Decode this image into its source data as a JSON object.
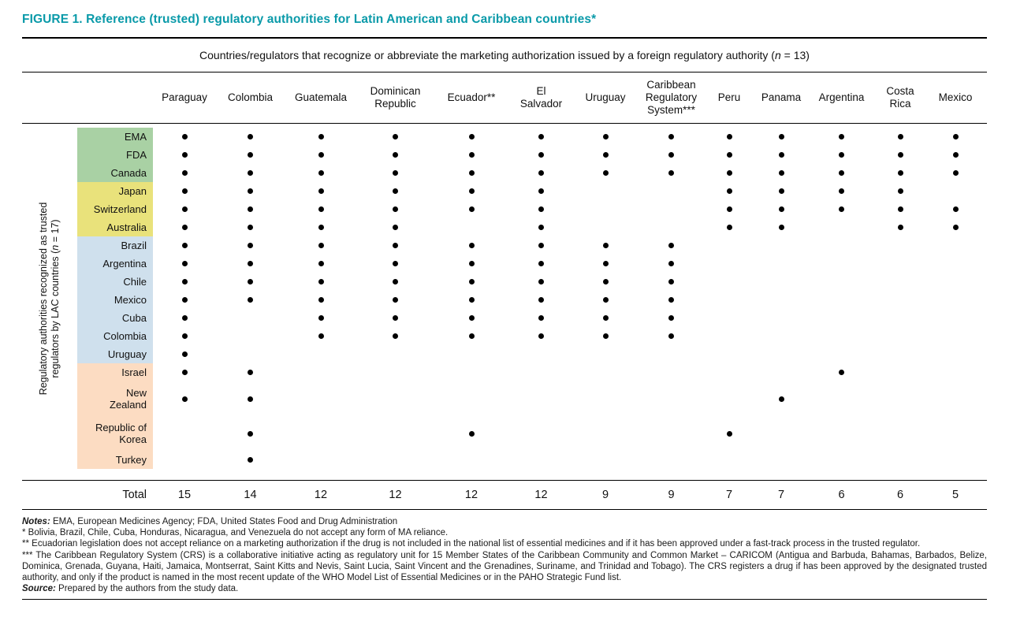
{
  "title": "FIGURE 1. Reference (trusted) regulatory authorities for Latin American and Caribbean countries*",
  "colors": {
    "title": "#0a9aa9",
    "green": "#a9d1a4",
    "yellow": "#e9e27b",
    "blue": "#cfe0ed",
    "peach": "#fcdcc2",
    "dot": "#000000"
  },
  "col_group_header": {
    "before": "Countries/regulators that recognize or abbreviate the marketing authorization issued by a foreign regulatory authority (",
    "n": "n",
    "after": " = 13)"
  },
  "side_label": {
    "line1": "Regulatory authorities recognized as trusted",
    "line2_before": "regulators by LAC countries (",
    "n": "n",
    "line2_after": " = 17)"
  },
  "chart_data": {
    "type": "heatmap",
    "title": "Reference (trusted) regulatory authorities for Latin American and Caribbean countries",
    "columns": [
      "Paraguay",
      "Colombia",
      "Guatemala",
      "Dominican\nRepublic",
      "Ecuador**",
      "El\nSalvador",
      "Uruguay",
      "Caribbean\nRegulatory\nSystem***",
      "Peru",
      "Panama",
      "Argentina",
      "Costa\nRica",
      "Mexico"
    ],
    "rows": [
      {
        "label": "EMA",
        "group": "green",
        "dots": [
          1,
          1,
          1,
          1,
          1,
          1,
          1,
          1,
          1,
          1,
          1,
          1,
          1
        ]
      },
      {
        "label": "FDA",
        "group": "green",
        "dots": [
          1,
          1,
          1,
          1,
          1,
          1,
          1,
          1,
          1,
          1,
          1,
          1,
          1
        ]
      },
      {
        "label": "Canada",
        "group": "green",
        "dots": [
          1,
          1,
          1,
          1,
          1,
          1,
          1,
          1,
          1,
          1,
          1,
          1,
          1
        ]
      },
      {
        "label": "Japan",
        "group": "yellow",
        "dots": [
          1,
          1,
          1,
          1,
          1,
          1,
          0,
          0,
          1,
          1,
          1,
          1,
          0
        ]
      },
      {
        "label": "Switzerland",
        "group": "yellow",
        "dots": [
          1,
          1,
          1,
          1,
          1,
          1,
          0,
          0,
          1,
          1,
          1,
          1,
          1
        ]
      },
      {
        "label": "Australia",
        "group": "yellow",
        "dots": [
          1,
          1,
          1,
          1,
          0,
          1,
          0,
          0,
          1,
          1,
          0,
          1,
          1
        ]
      },
      {
        "label": "Brazil",
        "group": "blue",
        "dots": [
          1,
          1,
          1,
          1,
          1,
          1,
          1,
          1,
          0,
          0,
          0,
          0,
          0
        ]
      },
      {
        "label": "Argentina",
        "group": "blue",
        "dots": [
          1,
          1,
          1,
          1,
          1,
          1,
          1,
          1,
          0,
          0,
          0,
          0,
          0
        ]
      },
      {
        "label": "Chile",
        "group": "blue",
        "dots": [
          1,
          1,
          1,
          1,
          1,
          1,
          1,
          1,
          0,
          0,
          0,
          0,
          0
        ]
      },
      {
        "label": "Mexico",
        "group": "blue",
        "dots": [
          1,
          1,
          1,
          1,
          1,
          1,
          1,
          1,
          0,
          0,
          0,
          0,
          0
        ]
      },
      {
        "label": "Cuba",
        "group": "blue",
        "dots": [
          1,
          0,
          1,
          1,
          1,
          1,
          1,
          1,
          0,
          0,
          0,
          0,
          0
        ]
      },
      {
        "label": "Colombia",
        "group": "blue",
        "dots": [
          1,
          0,
          1,
          1,
          1,
          1,
          1,
          1,
          0,
          0,
          0,
          0,
          0
        ]
      },
      {
        "label": "Uruguay",
        "group": "blue",
        "dots": [
          1,
          0,
          0,
          0,
          0,
          0,
          0,
          0,
          0,
          0,
          0,
          0,
          0
        ]
      },
      {
        "label": "Israel",
        "group": "peach",
        "dots": [
          1,
          1,
          0,
          0,
          0,
          0,
          0,
          0,
          0,
          0,
          1,
          0,
          0
        ]
      },
      {
        "label": "New\nZealand",
        "group": "peach",
        "dots": [
          1,
          1,
          0,
          0,
          0,
          0,
          0,
          0,
          0,
          1,
          0,
          0,
          0
        ]
      },
      {
        "label": "Republic of\nKorea",
        "group": "peach",
        "dots": [
          0,
          1,
          0,
          0,
          1,
          0,
          0,
          0,
          1,
          0,
          0,
          0,
          0
        ]
      },
      {
        "label": "Turkey",
        "group": "peach",
        "dots": [
          0,
          1,
          0,
          0,
          0,
          0,
          0,
          0,
          0,
          0,
          0,
          0,
          0
        ]
      }
    ],
    "total_label": "Total",
    "column_totals": [
      15,
      14,
      12,
      12,
      12,
      12,
      9,
      9,
      7,
      7,
      6,
      6,
      5
    ]
  },
  "notes": [
    {
      "lead": "Notes:",
      "text": " EMA, European Medicines Agency; FDA, United States Food and Drug Administration"
    },
    {
      "lead": "",
      "text": "* Bolivia, Brazil, Chile, Cuba, Honduras, Nicaragua, and Venezuela do not accept any form of MA reliance."
    },
    {
      "lead": "",
      "text": "** Ecuadorian legislation does not accept reliance on a marketing authorization if the drug is not included in the national list of essential medicines and if it has been approved under a fast-track process in the trusted regulator."
    },
    {
      "lead": "",
      "text": "*** The Caribbean Regulatory System (CRS) is a collaborative initiative acting as regulatory unit for 15 Member States of the Caribbean Community and Common Market – CARICOM (Antigua and Barbuda, Bahamas, Barbados, Belize, Dominica, Grenada, Guyana, Haiti, Jamaica, Montserrat, Saint Kitts and Nevis, Saint Lucia, Saint Vincent and the Grenadines, Suriname, and Trinidad and Tobago). The CRS registers a drug if has been approved by the designated trusted authority, and only if the product is named in the most recent update of the WHO Model List of Essential Medicines or in the PAHO Strategic Fund list."
    },
    {
      "lead": "Source:",
      "text": " Prepared by the authors from the study data."
    }
  ]
}
